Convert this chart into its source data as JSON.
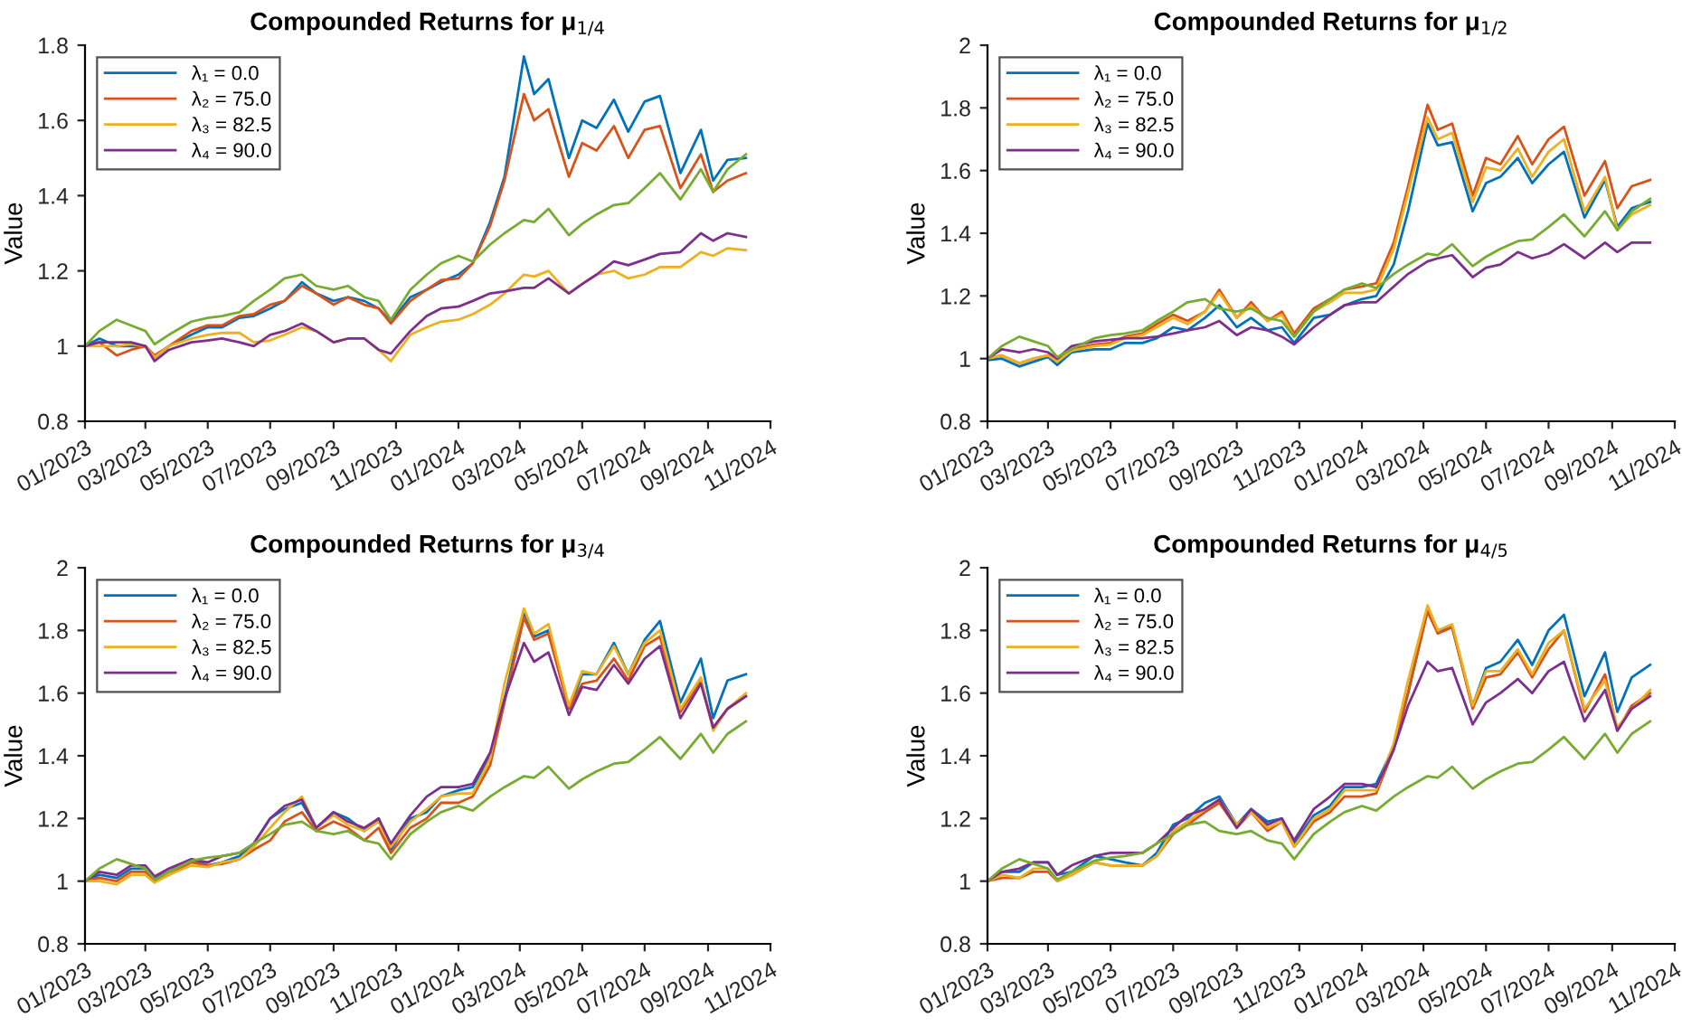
{
  "chart_data": [
    {
      "type": "line",
      "title": "Compounded Returns for μ$_{1/4}$",
      "ylabel": "Value",
      "legend": "top left",
      "grid": false,
      "x": [
        "2023-01-01",
        "2023-01-15",
        "2023-02-01",
        "2023-02-15",
        "2023-03-01",
        "2023-03-10",
        "2023-03-24",
        "2023-04-15",
        "2023-05-01",
        "2023-05-15",
        "2023-06-01",
        "2023-06-15",
        "2023-07-01",
        "2023-07-15",
        "2023-08-01",
        "2023-08-15",
        "2023-09-01",
        "2023-09-15",
        "2023-10-01",
        "2023-10-15",
        "2023-10-27",
        "2023-11-15",
        "2023-12-01",
        "2023-12-15",
        "2024-01-01",
        "2024-01-15",
        "2024-02-01",
        "2024-02-15",
        "2024-03-05",
        "2024-03-15",
        "2024-03-29",
        "2024-04-18",
        "2024-05-01",
        "2024-05-15",
        "2024-06-01",
        "2024-06-15",
        "2024-07-01",
        "2024-07-16",
        "2024-08-05",
        "2024-08-25",
        "2024-09-06",
        "2024-09-20",
        "2024-10-08"
      ],
      "xlim": [
        "2023-01-01",
        "2024-11-01"
      ],
      "xticks": [
        {
          "value": "2023-01-01",
          "label": "01/2023"
        },
        {
          "value": "2023-03-01",
          "label": "03/2023"
        },
        {
          "value": "2023-05-01",
          "label": "05/2023"
        },
        {
          "value": "2023-07-01",
          "label": "07/2023"
        },
        {
          "value": "2023-09-01",
          "label": "09/2023"
        },
        {
          "value": "2023-11-01",
          "label": "11/2023"
        },
        {
          "value": "2024-01-01",
          "label": "01/2024"
        },
        {
          "value": "2024-03-01",
          "label": "03/2024"
        },
        {
          "value": "2024-05-01",
          "label": "05/2024"
        },
        {
          "value": "2024-07-01",
          "label": "07/2024"
        },
        {
          "value": "2024-09-01",
          "label": "09/2024"
        },
        {
          "value": "2024-11-01",
          "label": "11/2024"
        }
      ],
      "ylim": [
        0.8,
        1.8
      ],
      "yticks": [
        0.8,
        1,
        1.2,
        1.4,
        1.6,
        1.8
      ],
      "series": [
        {
          "name": "λ₁ = 0.0",
          "color": "#0072bd",
          "values": [
            1.0,
            1.02,
            1.0,
            1.0,
            1.0,
            0.97,
            1.0,
            1.03,
            1.05,
            1.05,
            1.075,
            1.08,
            1.1,
            1.12,
            1.17,
            1.14,
            1.12,
            1.13,
            1.12,
            1.1,
            1.065,
            1.13,
            1.15,
            1.17,
            1.19,
            1.22,
            1.33,
            1.45,
            1.77,
            1.67,
            1.71,
            1.5,
            1.6,
            1.58,
            1.655,
            1.57,
            1.65,
            1.665,
            1.46,
            1.575,
            1.44,
            1.495,
            1.5
          ]
        },
        {
          "name": "λ₂ = 75.0",
          "color": "#d95319",
          "values": [
            1.0,
            1.01,
            0.975,
            0.99,
            1.0,
            0.975,
            1.0,
            1.04,
            1.055,
            1.055,
            1.08,
            1.085,
            1.11,
            1.12,
            1.16,
            1.14,
            1.11,
            1.13,
            1.11,
            1.1,
            1.06,
            1.12,
            1.15,
            1.175,
            1.18,
            1.22,
            1.32,
            1.44,
            1.67,
            1.6,
            1.63,
            1.45,
            1.54,
            1.52,
            1.585,
            1.5,
            1.575,
            1.585,
            1.42,
            1.51,
            1.41,
            1.44,
            1.46
          ]
        },
        {
          "name": "λ₃ = 82.5",
          "color": "#edb120",
          "values": [
            1.0,
            1.0,
            1.0,
            1.005,
            1.0,
            0.97,
            1.0,
            1.02,
            1.03,
            1.035,
            1.035,
            1.01,
            1.015,
            1.03,
            1.05,
            1.04,
            1.01,
            1.02,
            1.02,
            0.99,
            0.96,
            1.03,
            1.05,
            1.065,
            1.07,
            1.085,
            1.11,
            1.14,
            1.19,
            1.185,
            1.2,
            1.14,
            1.165,
            1.19,
            1.2,
            1.18,
            1.19,
            1.21,
            1.21,
            1.25,
            1.24,
            1.26,
            1.255
          ]
        },
        {
          "name": "λ₄ = 90.0",
          "color": "#7e2f8e",
          "values": [
            1.0,
            1.01,
            1.01,
            1.01,
            1.0,
            0.96,
            0.99,
            1.01,
            1.015,
            1.02,
            1.01,
            1.0,
            1.03,
            1.04,
            1.06,
            1.04,
            1.01,
            1.02,
            1.02,
            0.99,
            0.98,
            1.04,
            1.08,
            1.1,
            1.105,
            1.12,
            1.14,
            1.145,
            1.155,
            1.155,
            1.18,
            1.14,
            1.165,
            1.19,
            1.225,
            1.215,
            1.23,
            1.245,
            1.25,
            1.3,
            1.28,
            1.3,
            1.29
          ]
        },
        {
          "color": "#77ac30",
          "values": [
            1.0,
            1.04,
            1.07,
            1.055,
            1.04,
            1.005,
            1.03,
            1.065,
            1.075,
            1.08,
            1.09,
            1.12,
            1.15,
            1.18,
            1.19,
            1.16,
            1.15,
            1.16,
            1.13,
            1.12,
            1.07,
            1.15,
            1.19,
            1.22,
            1.24,
            1.225,
            1.27,
            1.3,
            1.335,
            1.33,
            1.365,
            1.295,
            1.325,
            1.35,
            1.375,
            1.38,
            1.42,
            1.46,
            1.39,
            1.47,
            1.41,
            1.47,
            1.51
          ]
        }
      ]
    },
    {
      "type": "line",
      "title": "Compounded Returns for μ$_{1/2}$",
      "ylabel": "Value",
      "legend": "top left",
      "grid": false,
      "x": [
        "2023-01-01",
        "2023-01-15",
        "2023-02-01",
        "2023-02-15",
        "2023-03-01",
        "2023-03-10",
        "2023-03-24",
        "2023-04-15",
        "2023-05-01",
        "2023-05-15",
        "2023-06-01",
        "2023-06-15",
        "2023-07-01",
        "2023-07-15",
        "2023-08-01",
        "2023-08-15",
        "2023-09-01",
        "2023-09-15",
        "2023-10-01",
        "2023-10-15",
        "2023-10-27",
        "2023-11-15",
        "2023-12-01",
        "2023-12-15",
        "2024-01-01",
        "2024-01-15",
        "2024-02-01",
        "2024-02-15",
        "2024-03-05",
        "2024-03-15",
        "2024-03-29",
        "2024-04-18",
        "2024-05-01",
        "2024-05-15",
        "2024-06-01",
        "2024-06-15",
        "2024-07-01",
        "2024-07-16",
        "2024-08-05",
        "2024-08-25",
        "2024-09-06",
        "2024-09-20",
        "2024-10-08"
      ],
      "xlim": [
        "2023-01-01",
        "2024-11-01"
      ],
      "xticks": [
        {
          "value": "2023-01-01",
          "label": "01/2023"
        },
        {
          "value": "2023-03-01",
          "label": "03/2023"
        },
        {
          "value": "2023-05-01",
          "label": "05/2023"
        },
        {
          "value": "2023-07-01",
          "label": "07/2023"
        },
        {
          "value": "2023-09-01",
          "label": "09/2023"
        },
        {
          "value": "2023-11-01",
          "label": "11/2023"
        },
        {
          "value": "2024-01-01",
          "label": "01/2024"
        },
        {
          "value": "2024-03-01",
          "label": "03/2024"
        },
        {
          "value": "2024-05-01",
          "label": "05/2024"
        },
        {
          "value": "2024-07-01",
          "label": "07/2024"
        },
        {
          "value": "2024-09-01",
          "label": "09/2024"
        },
        {
          "value": "2024-11-01",
          "label": "11/2024"
        }
      ],
      "ylim": [
        0.8,
        2
      ],
      "yticks": [
        0.8,
        1,
        1.2,
        1.4,
        1.6,
        1.8,
        2
      ],
      "series": [
        {
          "name": "λ₁ = 0.0",
          "color": "#0072bd",
          "values": [
            0.995,
            1.0,
            0.975,
            0.99,
            1.005,
            0.98,
            1.02,
            1.03,
            1.03,
            1.05,
            1.05,
            1.065,
            1.1,
            1.09,
            1.13,
            1.17,
            1.1,
            1.13,
            1.09,
            1.1,
            1.05,
            1.13,
            1.14,
            1.17,
            1.19,
            1.2,
            1.3,
            1.47,
            1.75,
            1.68,
            1.69,
            1.47,
            1.56,
            1.58,
            1.64,
            1.56,
            1.62,
            1.66,
            1.45,
            1.57,
            1.42,
            1.48,
            1.5
          ]
        },
        {
          "name": "λ₂ = 75.0",
          "color": "#d95319",
          "values": [
            1.0,
            1.01,
            0.985,
            1.0,
            1.01,
            0.995,
            1.03,
            1.045,
            1.05,
            1.07,
            1.08,
            1.11,
            1.14,
            1.12,
            1.15,
            1.22,
            1.13,
            1.18,
            1.12,
            1.15,
            1.08,
            1.16,
            1.19,
            1.22,
            1.23,
            1.24,
            1.37,
            1.55,
            1.81,
            1.73,
            1.75,
            1.52,
            1.64,
            1.62,
            1.71,
            1.62,
            1.7,
            1.74,
            1.52,
            1.63,
            1.48,
            1.55,
            1.57
          ]
        },
        {
          "name": "λ₃ = 82.5",
          "color": "#edb120",
          "values": [
            1.0,
            1.01,
            0.985,
            1.0,
            1.01,
            0.99,
            1.025,
            1.04,
            1.045,
            1.065,
            1.075,
            1.1,
            1.13,
            1.11,
            1.15,
            1.21,
            1.13,
            1.17,
            1.12,
            1.14,
            1.07,
            1.15,
            1.18,
            1.21,
            1.21,
            1.22,
            1.35,
            1.53,
            1.77,
            1.7,
            1.72,
            1.5,
            1.61,
            1.6,
            1.67,
            1.58,
            1.66,
            1.7,
            1.47,
            1.58,
            1.41,
            1.46,
            1.49
          ]
        },
        {
          "name": "λ₄ = 90.0",
          "color": "#7e2f8e",
          "values": [
            1.0,
            1.03,
            1.02,
            1.03,
            1.02,
            1.0,
            1.04,
            1.055,
            1.06,
            1.065,
            1.065,
            1.07,
            1.08,
            1.09,
            1.1,
            1.12,
            1.075,
            1.1,
            1.09,
            1.07,
            1.045,
            1.1,
            1.14,
            1.17,
            1.18,
            1.18,
            1.23,
            1.27,
            1.31,
            1.32,
            1.33,
            1.26,
            1.29,
            1.3,
            1.34,
            1.32,
            1.335,
            1.365,
            1.32,
            1.37,
            1.34,
            1.37,
            1.37
          ]
        },
        {
          "color": "#77ac30",
          "values": [
            1.0,
            1.04,
            1.07,
            1.055,
            1.04,
            1.005,
            1.03,
            1.065,
            1.075,
            1.08,
            1.09,
            1.12,
            1.15,
            1.18,
            1.19,
            1.16,
            1.15,
            1.16,
            1.13,
            1.12,
            1.07,
            1.15,
            1.19,
            1.22,
            1.24,
            1.225,
            1.27,
            1.3,
            1.335,
            1.33,
            1.365,
            1.295,
            1.325,
            1.35,
            1.375,
            1.38,
            1.42,
            1.46,
            1.39,
            1.47,
            1.41,
            1.47,
            1.51
          ]
        }
      ]
    },
    {
      "type": "line",
      "title": "Compounded Returns for μ$_{3/4}$",
      "ylabel": "Value",
      "legend": "top left",
      "grid": false,
      "x": [
        "2023-01-01",
        "2023-01-15",
        "2023-02-01",
        "2023-02-15",
        "2023-03-01",
        "2023-03-10",
        "2023-03-24",
        "2023-04-15",
        "2023-05-01",
        "2023-05-15",
        "2023-06-01",
        "2023-06-15",
        "2023-07-01",
        "2023-07-15",
        "2023-08-01",
        "2023-08-15",
        "2023-09-01",
        "2023-09-15",
        "2023-10-01",
        "2023-10-15",
        "2023-10-27",
        "2023-11-15",
        "2023-12-01",
        "2023-12-15",
        "2024-01-01",
        "2024-01-15",
        "2024-02-01",
        "2024-02-15",
        "2024-03-05",
        "2024-03-15",
        "2024-03-29",
        "2024-04-18",
        "2024-05-01",
        "2024-05-15",
        "2024-06-01",
        "2024-06-15",
        "2024-07-01",
        "2024-07-16",
        "2024-08-05",
        "2024-08-25",
        "2024-09-06",
        "2024-09-20",
        "2024-10-08"
      ],
      "xlim": [
        "2023-01-01",
        "2024-11-01"
      ],
      "xticks": [
        {
          "value": "2023-01-01",
          "label": "01/2023"
        },
        {
          "value": "2023-03-01",
          "label": "03/2023"
        },
        {
          "value": "2023-05-01",
          "label": "05/2023"
        },
        {
          "value": "2023-07-01",
          "label": "07/2023"
        },
        {
          "value": "2023-09-01",
          "label": "09/2023"
        },
        {
          "value": "2023-11-01",
          "label": "11/2023"
        },
        {
          "value": "2024-01-01",
          "label": "01/2024"
        },
        {
          "value": "2024-03-01",
          "label": "03/2024"
        },
        {
          "value": "2024-05-01",
          "label": "05/2024"
        },
        {
          "value": "2024-07-01",
          "label": "07/2024"
        },
        {
          "value": "2024-09-01",
          "label": "09/2024"
        },
        {
          "value": "2024-11-01",
          "label": "11/2024"
        }
      ],
      "ylim": [
        0.8,
        2
      ],
      "yticks": [
        0.8,
        1,
        1.2,
        1.4,
        1.6,
        1.8,
        2
      ],
      "series": [
        {
          "name": "λ₁ = 0.0",
          "color": "#0072bd",
          "values": [
            1.0,
            1.02,
            1.01,
            1.04,
            1.04,
            1.01,
            1.03,
            1.07,
            1.05,
            1.06,
            1.08,
            1.12,
            1.2,
            1.23,
            1.25,
            1.17,
            1.22,
            1.2,
            1.16,
            1.2,
            1.1,
            1.2,
            1.22,
            1.27,
            1.29,
            1.3,
            1.4,
            1.58,
            1.86,
            1.78,
            1.8,
            1.55,
            1.66,
            1.66,
            1.76,
            1.66,
            1.77,
            1.83,
            1.57,
            1.71,
            1.52,
            1.64,
            1.66
          ]
        },
        {
          "name": "λ₂ = 75.0",
          "color": "#d95319",
          "values": [
            1.0,
            1.01,
            1.0,
            1.03,
            1.03,
            1.0,
            1.02,
            1.06,
            1.05,
            1.055,
            1.07,
            1.1,
            1.13,
            1.19,
            1.22,
            1.16,
            1.19,
            1.17,
            1.13,
            1.17,
            1.09,
            1.17,
            1.2,
            1.25,
            1.25,
            1.27,
            1.37,
            1.57,
            1.84,
            1.77,
            1.79,
            1.55,
            1.63,
            1.64,
            1.71,
            1.64,
            1.75,
            1.78,
            1.54,
            1.64,
            1.49,
            1.55,
            1.59
          ]
        },
        {
          "name": "λ₃ = 82.5",
          "color": "#edb120",
          "values": [
            1.0,
            1.0,
            0.99,
            1.02,
            1.02,
            0.995,
            1.02,
            1.05,
            1.045,
            1.06,
            1.07,
            1.11,
            1.17,
            1.22,
            1.27,
            1.17,
            1.21,
            1.18,
            1.16,
            1.19,
            1.11,
            1.19,
            1.23,
            1.27,
            1.28,
            1.28,
            1.39,
            1.63,
            1.87,
            1.79,
            1.82,
            1.56,
            1.67,
            1.66,
            1.75,
            1.66,
            1.76,
            1.8,
            1.55,
            1.65,
            1.48,
            1.55,
            1.6
          ]
        },
        {
          "name": "λ₄ = 90.0",
          "color": "#7e2f8e",
          "values": [
            1.0,
            1.03,
            1.02,
            1.05,
            1.05,
            1.015,
            1.04,
            1.07,
            1.06,
            1.08,
            1.09,
            1.12,
            1.2,
            1.24,
            1.26,
            1.17,
            1.22,
            1.19,
            1.17,
            1.2,
            1.12,
            1.21,
            1.27,
            1.3,
            1.3,
            1.31,
            1.41,
            1.58,
            1.76,
            1.7,
            1.73,
            1.53,
            1.62,
            1.61,
            1.69,
            1.63,
            1.71,
            1.75,
            1.52,
            1.63,
            1.49,
            1.55,
            1.59
          ]
        },
        {
          "color": "#77ac30",
          "values": [
            1.0,
            1.04,
            1.07,
            1.055,
            1.04,
            1.005,
            1.03,
            1.065,
            1.075,
            1.08,
            1.09,
            1.12,
            1.15,
            1.18,
            1.19,
            1.16,
            1.15,
            1.16,
            1.13,
            1.12,
            1.07,
            1.15,
            1.19,
            1.22,
            1.24,
            1.225,
            1.27,
            1.3,
            1.335,
            1.33,
            1.365,
            1.295,
            1.325,
            1.35,
            1.375,
            1.38,
            1.42,
            1.46,
            1.39,
            1.47,
            1.41,
            1.47,
            1.51
          ]
        }
      ]
    },
    {
      "type": "line",
      "title": "Compounded Returns for μ$_{4/5}$",
      "ylabel": "Value",
      "legend": "top left",
      "grid": false,
      "x": [
        "2023-01-01",
        "2023-01-15",
        "2023-02-01",
        "2023-02-15",
        "2023-03-01",
        "2023-03-10",
        "2023-03-24",
        "2023-04-15",
        "2023-05-01",
        "2023-05-15",
        "2023-06-01",
        "2023-06-15",
        "2023-07-01",
        "2023-07-15",
        "2023-08-01",
        "2023-08-15",
        "2023-09-01",
        "2023-09-15",
        "2023-10-01",
        "2023-10-15",
        "2023-10-27",
        "2023-11-15",
        "2023-12-01",
        "2023-12-15",
        "2024-01-01",
        "2024-01-15",
        "2024-02-01",
        "2024-02-15",
        "2024-03-05",
        "2024-03-15",
        "2024-03-29",
        "2024-04-18",
        "2024-05-01",
        "2024-05-15",
        "2024-06-01",
        "2024-06-15",
        "2024-07-01",
        "2024-07-16",
        "2024-08-05",
        "2024-08-25",
        "2024-09-06",
        "2024-09-20",
        "2024-10-08"
      ],
      "xlim": [
        "2023-01-01",
        "2024-11-01"
      ],
      "xticks": [
        {
          "value": "2023-01-01",
          "label": "01/2023"
        },
        {
          "value": "2023-03-01",
          "label": "03/2023"
        },
        {
          "value": "2023-05-01",
          "label": "05/2023"
        },
        {
          "value": "2023-07-01",
          "label": "07/2023"
        },
        {
          "value": "2023-09-01",
          "label": "09/2023"
        },
        {
          "value": "2023-11-01",
          "label": "11/2023"
        },
        {
          "value": "2024-01-01",
          "label": "01/2024"
        },
        {
          "value": "2024-03-01",
          "label": "03/2024"
        },
        {
          "value": "2024-05-01",
          "label": "05/2024"
        },
        {
          "value": "2024-07-01",
          "label": "07/2024"
        },
        {
          "value": "2024-09-01",
          "label": "09/2024"
        },
        {
          "value": "2024-11-01",
          "label": "11/2024"
        }
      ],
      "ylim": [
        0.8,
        2
      ],
      "yticks": [
        0.8,
        1,
        1.2,
        1.4,
        1.6,
        1.8,
        2
      ],
      "series": [
        {
          "name": "λ₁ = 0.0",
          "color": "#0072bd",
          "values": [
            1.0,
            1.03,
            1.03,
            1.06,
            1.06,
            1.02,
            1.03,
            1.08,
            1.07,
            1.06,
            1.05,
            1.09,
            1.18,
            1.2,
            1.25,
            1.27,
            1.18,
            1.23,
            1.19,
            1.2,
            1.12,
            1.21,
            1.24,
            1.3,
            1.3,
            1.31,
            1.43,
            1.6,
            1.87,
            1.8,
            1.81,
            1.56,
            1.68,
            1.7,
            1.77,
            1.69,
            1.8,
            1.85,
            1.59,
            1.73,
            1.54,
            1.65,
            1.69
          ]
        },
        {
          "name": "λ₂ = 75.0",
          "color": "#d95319",
          "values": [
            1.0,
            1.01,
            1.01,
            1.03,
            1.03,
            1.0,
            1.02,
            1.06,
            1.05,
            1.05,
            1.05,
            1.08,
            1.15,
            1.18,
            1.22,
            1.25,
            1.17,
            1.22,
            1.16,
            1.19,
            1.11,
            1.19,
            1.22,
            1.27,
            1.27,
            1.28,
            1.42,
            1.6,
            1.86,
            1.79,
            1.81,
            1.55,
            1.65,
            1.66,
            1.73,
            1.65,
            1.74,
            1.8,
            1.54,
            1.66,
            1.48,
            1.56,
            1.6
          ]
        },
        {
          "name": "λ₃ = 82.5",
          "color": "#edb120",
          "values": [
            1.0,
            1.02,
            1.01,
            1.04,
            1.04,
            1.0,
            1.02,
            1.06,
            1.05,
            1.05,
            1.05,
            1.08,
            1.16,
            1.19,
            1.23,
            1.26,
            1.18,
            1.22,
            1.17,
            1.19,
            1.11,
            1.2,
            1.23,
            1.29,
            1.29,
            1.29,
            1.44,
            1.64,
            1.88,
            1.8,
            1.82,
            1.56,
            1.67,
            1.67,
            1.74,
            1.66,
            1.76,
            1.8,
            1.55,
            1.64,
            1.49,
            1.55,
            1.61
          ]
        },
        {
          "name": "λ₄ = 90.0",
          "color": "#7e2f8e",
          "values": [
            1.0,
            1.03,
            1.04,
            1.06,
            1.06,
            1.02,
            1.05,
            1.08,
            1.09,
            1.09,
            1.09,
            1.12,
            1.17,
            1.21,
            1.23,
            1.26,
            1.17,
            1.23,
            1.18,
            1.2,
            1.13,
            1.23,
            1.27,
            1.31,
            1.31,
            1.3,
            1.42,
            1.56,
            1.7,
            1.67,
            1.68,
            1.5,
            1.57,
            1.6,
            1.645,
            1.6,
            1.67,
            1.7,
            1.51,
            1.61,
            1.48,
            1.55,
            1.59
          ]
        },
        {
          "color": "#77ac30",
          "values": [
            1.0,
            1.04,
            1.07,
            1.055,
            1.04,
            1.005,
            1.03,
            1.065,
            1.075,
            1.08,
            1.09,
            1.12,
            1.15,
            1.18,
            1.19,
            1.16,
            1.15,
            1.16,
            1.13,
            1.12,
            1.07,
            1.15,
            1.19,
            1.22,
            1.24,
            1.225,
            1.27,
            1.3,
            1.335,
            1.33,
            1.365,
            1.295,
            1.325,
            1.35,
            1.375,
            1.38,
            1.42,
            1.46,
            1.39,
            1.47,
            1.41,
            1.47,
            1.51
          ]
        }
      ]
    }
  ]
}
